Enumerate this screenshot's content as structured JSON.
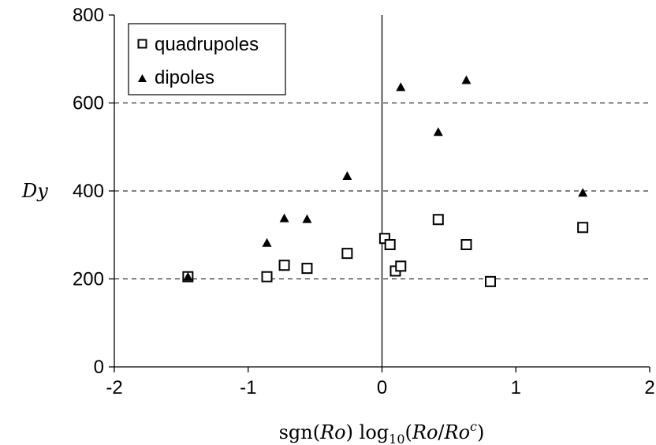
{
  "chart_data": {
    "type": "scatter",
    "xlabel": "sgn(Ro) log10(Ro/Ro^c)",
    "xlabel_parts": {
      "sgn": "sgn(",
      "ro1": "Ro",
      "close1": ") ",
      "log": "log",
      "log_sub": "10",
      "open2": "(",
      "ro2": "Ro",
      "slash": "/",
      "ro3": "Ro",
      "sup": "c",
      "close2": ")"
    },
    "ylabel": "Dy",
    "xlim": [
      -2,
      2
    ],
    "ylim": [
      0,
      800
    ],
    "xticks": [
      -2,
      -1,
      0,
      1,
      2
    ],
    "yticks": [
      0,
      200,
      400,
      600,
      800
    ],
    "grid": "horizontal dashed at 200, 400, 600",
    "zero_line": "vertical line at x = 0",
    "legend_position": "top-left",
    "series": [
      {
        "name": "quadrupoles",
        "marker": "open-square",
        "color": "#000000",
        "points": [
          {
            "x": -1.45,
            "y": 205
          },
          {
            "x": -0.86,
            "y": 205
          },
          {
            "x": -0.73,
            "y": 231
          },
          {
            "x": -0.56,
            "y": 224
          },
          {
            "x": -0.26,
            "y": 258
          },
          {
            "x": 0.02,
            "y": 292
          },
          {
            "x": 0.06,
            "y": 278
          },
          {
            "x": 0.1,
            "y": 218
          },
          {
            "x": 0.14,
            "y": 229
          },
          {
            "x": 0.42,
            "y": 335
          },
          {
            "x": 0.63,
            "y": 278
          },
          {
            "x": 0.81,
            "y": 194
          },
          {
            "x": 1.5,
            "y": 317
          }
        ]
      },
      {
        "name": "dipoles",
        "marker": "filled-triangle",
        "color": "#000000",
        "points": [
          {
            "x": -1.45,
            "y": 205
          },
          {
            "x": -0.86,
            "y": 282
          },
          {
            "x": -0.73,
            "y": 338
          },
          {
            "x": -0.56,
            "y": 336
          },
          {
            "x": -0.26,
            "y": 434
          },
          {
            "x": 0.14,
            "y": 636
          },
          {
            "x": 0.42,
            "y": 534
          },
          {
            "x": 0.63,
            "y": 652
          },
          {
            "x": 1.5,
            "y": 396
          }
        ]
      }
    ]
  }
}
